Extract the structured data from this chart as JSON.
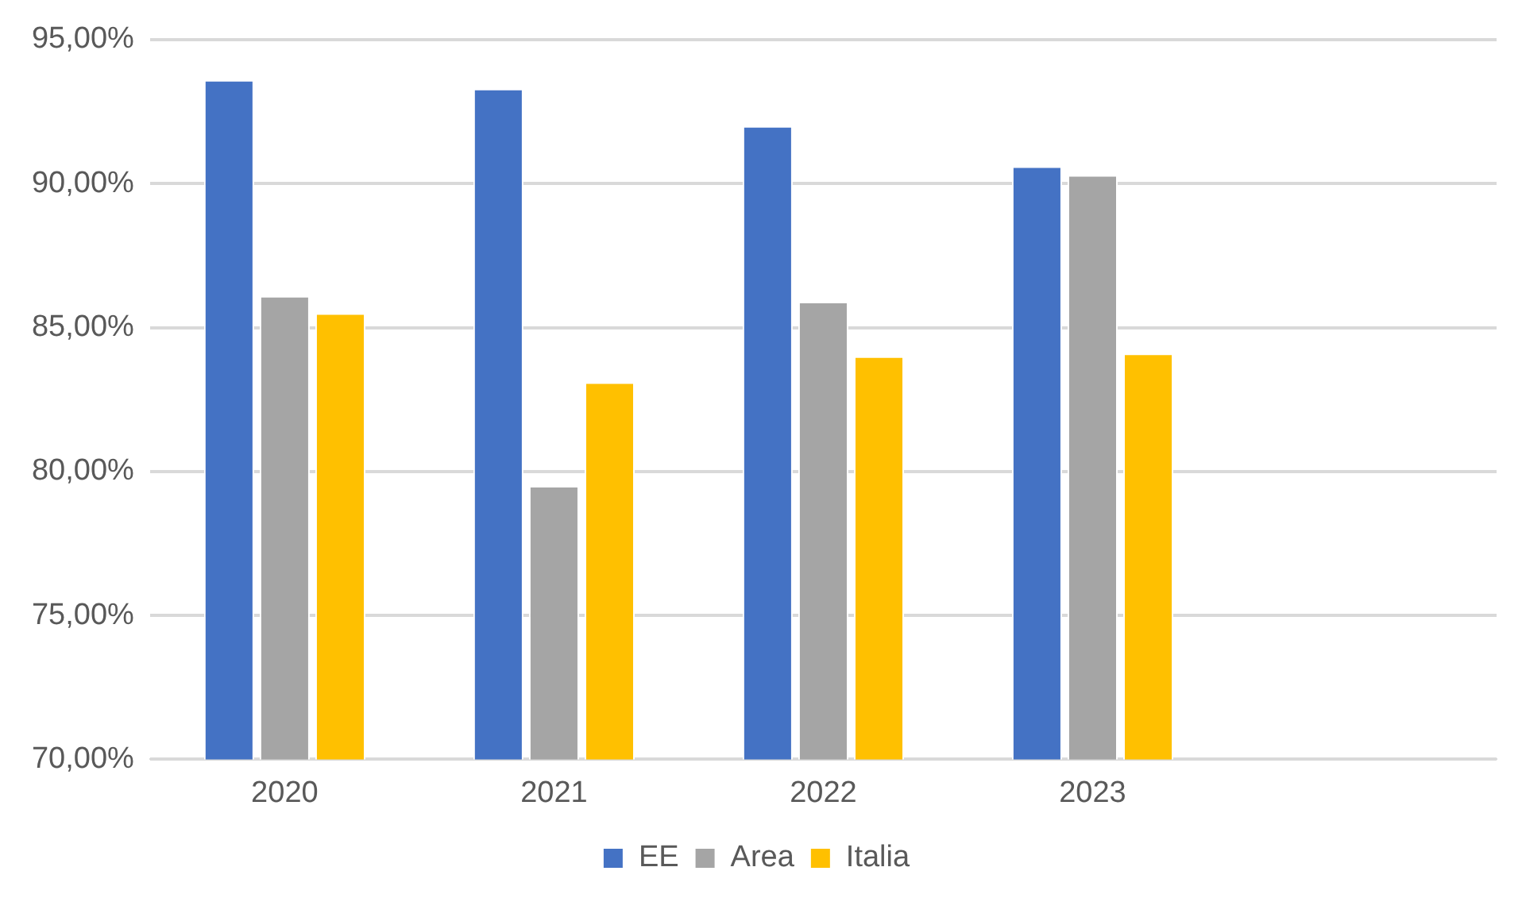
{
  "chart_data": {
    "type": "bar",
    "categories": [
      "2020",
      "2021",
      "2022",
      "2023",
      null
    ],
    "series": [
      {
        "name": "EE",
        "color": "#4472c4",
        "values": [
          93.6,
          93.3,
          92.0,
          90.6,
          null
        ]
      },
      {
        "name": "Area",
        "color": "#a5a5a5",
        "values": [
          86.1,
          79.5,
          85.9,
          90.3,
          null
        ]
      },
      {
        "name": "Italia",
        "color": "#ffc000",
        "values": [
          85.5,
          83.1,
          84.0,
          84.1,
          null
        ]
      }
    ],
    "ylim": [
      70,
      95
    ],
    "yticks": [
      {
        "value": 70,
        "label": "70,00%"
      },
      {
        "value": 75,
        "label": "75,00%"
      },
      {
        "value": 80,
        "label": "80,00%"
      },
      {
        "value": 85,
        "label": "85,00%"
      },
      {
        "value": 90,
        "label": "90,00%"
      },
      {
        "value": 95,
        "label": "95,00%"
      }
    ],
    "grid": "y",
    "legend": "bottom"
  }
}
